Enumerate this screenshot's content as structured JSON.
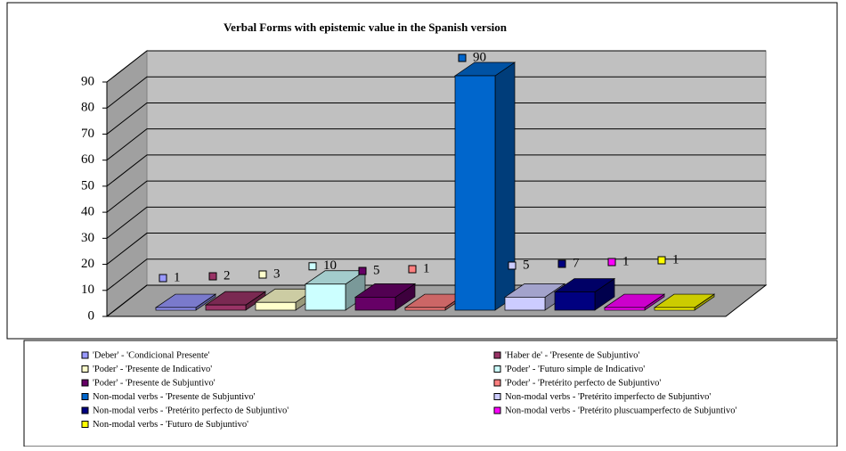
{
  "chart_data": {
    "type": "bar3d",
    "title": "Verbal Forms with epistemic value in the Spanish version",
    "categories": [
      "'Deber' - 'Condicional Presente'",
      "'Haber de' - 'Presente de Subjuntivo'",
      "'Poder' - 'Presente de Indicativo'",
      "'Poder' - 'Futuro simple de Indicativo'",
      "'Poder' - 'Presente de Subjuntivo'",
      "'Poder' - 'Pretérito perfecto de Subjuntivo'",
      "Non-modal verbs - 'Presente de Subjuntivo'",
      "Non-modal verbs - 'Pretérito imperfecto de Subjuntivo'",
      "Non-modal verbs - 'Pretérito perfecto de Subjuntivo'",
      "Non-modal verbs - 'Pretérito pluscuamperfecto de Subjuntivo'",
      "Non-modal verbs - 'Futuro de Subjuntivo'"
    ],
    "values": [
      1,
      2,
      3,
      10,
      5,
      1,
      90,
      5,
      7,
      1,
      1
    ],
    "colors": [
      "#9999ff",
      "#993366",
      "#ffffcc",
      "#ccffff",
      "#660066",
      "#ff8080",
      "#0066cc",
      "#ccccff",
      "#000080",
      "#ff00ff",
      "#ffff00"
    ],
    "ylim": [
      0,
      90
    ],
    "yticks": [
      0,
      10,
      20,
      30,
      40,
      50,
      60,
      70,
      80,
      90
    ],
    "grid": true
  }
}
